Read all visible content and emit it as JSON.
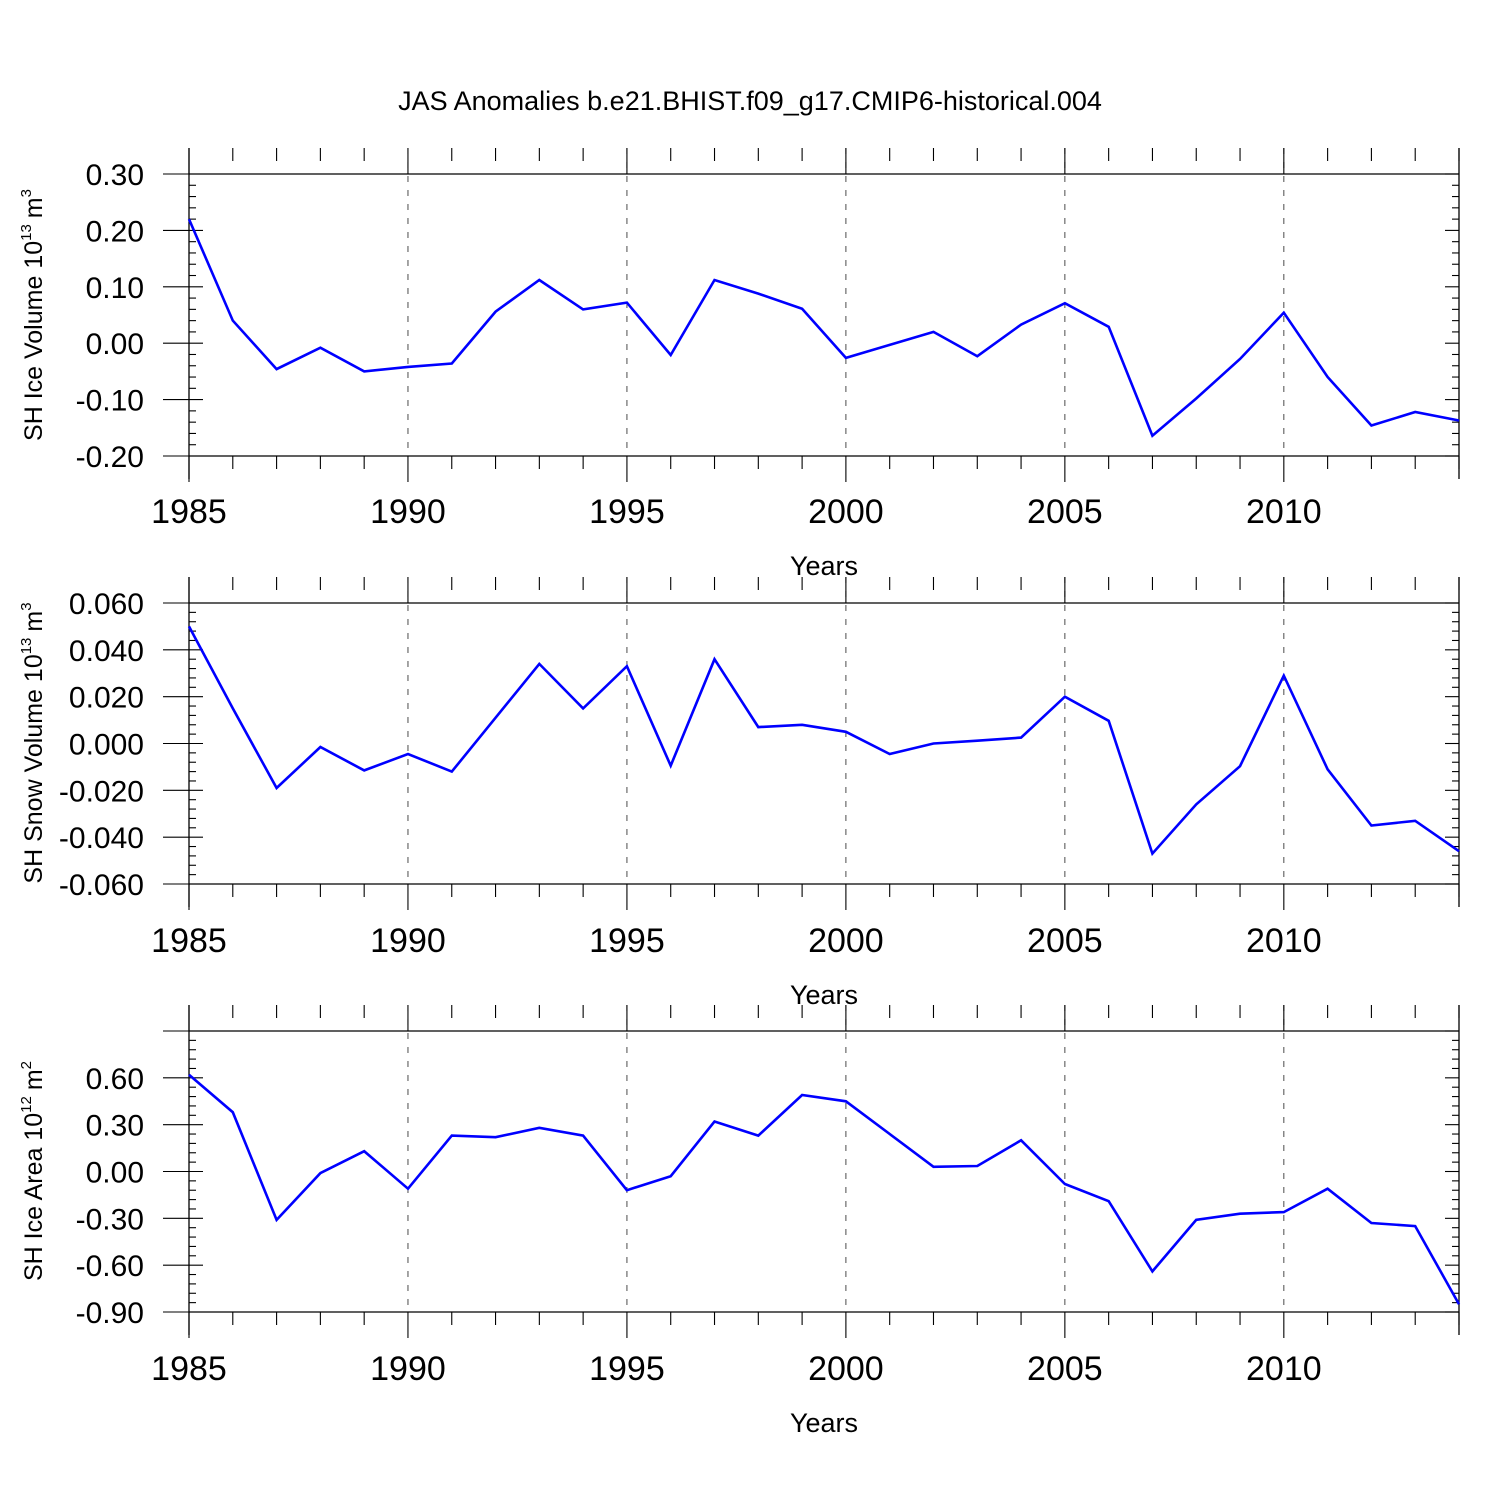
{
  "title": "JAS Anomalies b.e21.BHIST.f09_g17.CMIP6-historical.004",
  "line_color": "#0000ff",
  "chart_data": [
    {
      "type": "line",
      "ylabel": "SH Ice Volume 10",
      "ylabel_exp": "13",
      "ylabel_unit": "m",
      "ylabel_unit_exp": "3",
      "xlabel": "Years",
      "xlim": [
        1985,
        2014
      ],
      "ylim": [
        -0.2,
        0.3
      ],
      "yticks": [
        -0.2,
        -0.1,
        0.0,
        0.1,
        0.2,
        0.3
      ],
      "ytick_labels": [
        "-0.20",
        "-0.10",
        "0.00",
        "0.10",
        "0.20",
        "0.30"
      ],
      "xticks": [
        1985,
        1990,
        1995,
        2000,
        2005,
        2010
      ],
      "xtick_labels": [
        "1985",
        "1990",
        "1995",
        "2000",
        "2005",
        "2010"
      ],
      "x": [
        1985,
        1986,
        1987,
        1988,
        1989,
        1990,
        1991,
        1992,
        1993,
        1994,
        1995,
        1996,
        1997,
        1998,
        1999,
        2000,
        2001,
        2002,
        2003,
        2004,
        2005,
        2006,
        2007,
        2008,
        2009,
        2010,
        2011,
        2012,
        2013,
        2014
      ],
      "values": [
        0.22,
        0.04,
        -0.046,
        -0.008,
        -0.05,
        -0.042,
        -0.036,
        0.056,
        0.112,
        0.06,
        0.072,
        -0.021,
        0.112,
        0.088,
        0.061,
        -0.026,
        -0.003,
        0.02,
        -0.023,
        0.033,
        0.071,
        0.029,
        -0.164,
        -0.098,
        -0.028,
        0.054,
        -0.06,
        -0.146,
        -0.122,
        -0.137
      ]
    },
    {
      "type": "line",
      "ylabel": "SH Snow Volume 10",
      "ylabel_exp": "13",
      "ylabel_unit": "m",
      "ylabel_unit_exp": "3",
      "xlabel": "Years",
      "xlim": [
        1985,
        2014
      ],
      "ylim": [
        -0.06,
        0.06
      ],
      "yticks": [
        -0.06,
        -0.04,
        -0.02,
        0.0,
        0.02,
        0.04,
        0.06
      ],
      "ytick_labels": [
        "-0.060",
        "-0.040",
        "-0.020",
        "0.000",
        "0.020",
        "0.040",
        "0.060"
      ],
      "xticks": [
        1985,
        1990,
        1995,
        2000,
        2005,
        2010
      ],
      "xtick_labels": [
        "1985",
        "1990",
        "1995",
        "2000",
        "2005",
        "2010"
      ],
      "x": [
        1985,
        1986,
        1987,
        1988,
        1989,
        1990,
        1991,
        1992,
        1993,
        1994,
        1995,
        1996,
        1997,
        1998,
        1999,
        2000,
        2001,
        2002,
        2003,
        2004,
        2005,
        2006,
        2007,
        2008,
        2009,
        2010,
        2011,
        2012,
        2013,
        2014
      ],
      "values": [
        0.05,
        0.015,
        -0.019,
        -0.0015,
        -0.0115,
        -0.0045,
        -0.012,
        0.011,
        0.034,
        0.015,
        0.033,
        -0.0095,
        0.036,
        0.007,
        0.008,
        0.005,
        -0.0045,
        0.0,
        0.0012,
        0.0025,
        0.02,
        0.0097,
        -0.047,
        -0.026,
        -0.0097,
        0.029,
        -0.011,
        -0.035,
        -0.033,
        -0.046
      ]
    },
    {
      "type": "line",
      "ylabel": "SH Ice Area 10",
      "ylabel_exp": "12",
      "ylabel_unit": "m",
      "ylabel_unit_exp": "2",
      "xlabel": "Years",
      "xlim": [
        1985,
        2014
      ],
      "ylim": [
        -0.9,
        0.9
      ],
      "yticks": [
        -0.9,
        -0.6,
        -0.3,
        0.0,
        0.3,
        0.6
      ],
      "ytick_labels": [
        "-0.90",
        "-0.60",
        "-0.30",
        "0.00",
        "0.30",
        "0.60"
      ],
      "xticks": [
        1985,
        1990,
        1995,
        2000,
        2005,
        2010
      ],
      "xtick_labels": [
        "1985",
        "1990",
        "1995",
        "2000",
        "2005",
        "2010"
      ],
      "x": [
        1985,
        1986,
        1987,
        1988,
        1989,
        1990,
        1991,
        1992,
        1993,
        1994,
        1995,
        1996,
        1997,
        1998,
        1999,
        2000,
        2001,
        2002,
        2003,
        2004,
        2005,
        2006,
        2007,
        2008,
        2009,
        2010,
        2011,
        2012,
        2013,
        2014
      ],
      "values": [
        0.62,
        0.38,
        -0.31,
        -0.01,
        0.13,
        -0.11,
        0.23,
        0.22,
        0.28,
        0.23,
        -0.12,
        -0.03,
        0.32,
        0.23,
        0.49,
        0.45,
        0.24,
        0.03,
        0.035,
        0.2,
        -0.08,
        -0.19,
        -0.64,
        -0.31,
        -0.27,
        -0.26,
        -0.11,
        -0.33,
        -0.35,
        -0.85
      ]
    }
  ]
}
